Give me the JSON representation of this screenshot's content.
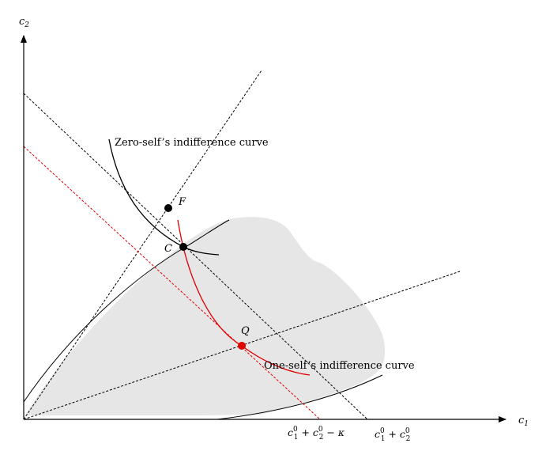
{
  "axes": {
    "x_label": "c",
    "x_label_sub": "1",
    "y_label": "c",
    "y_label_sub": "2"
  },
  "points": {
    "F": "F",
    "C": "C",
    "Q": "Q"
  },
  "curves": {
    "zero_self": "Zero-self’s indifference curve",
    "one_self": "One-self’s indifference curve"
  },
  "intercepts": {
    "budget_kappa": {
      "c": "c",
      "sup1": "0",
      "sub1": "1",
      "plus": " + ",
      "c2": "c",
      "sup2": "0",
      "sub2": "2",
      "minus": " − ",
      "kappa": "κ"
    },
    "budget_full": {
      "c": "c",
      "sup1": "0",
      "sub1": "1",
      "plus": " + ",
      "c2": "c",
      "sup2": "0",
      "sub2": "2"
    }
  },
  "colors": {
    "axis": "#000000",
    "zero_self_curve": "#000000",
    "one_self_curve": "#e00000",
    "point_Q": "#e00000",
    "feasible_region": "#e6e6e6"
  }
}
